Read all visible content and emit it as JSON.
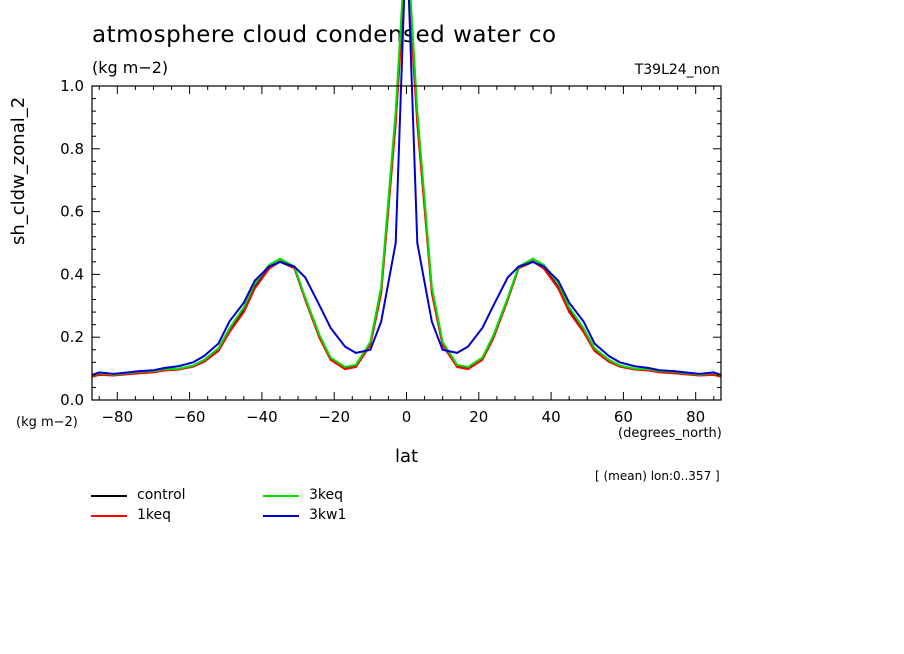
{
  "chart_data": {
    "type": "line",
    "title": "atmosphere cloud condensed water co",
    "units_label": "(kg m−2)",
    "run_label": "T39L24_non",
    "ylabel": "sh_cldw_zonal_2",
    "xlabel": "lat",
    "y_units": "(kg m−2)",
    "x_units": "(degrees_north)",
    "note": "[ (mean) lon:0..357 ]",
    "xlim": [
      -87,
      87
    ],
    "ylim": [
      0,
      1
    ],
    "x_ticks": [
      "-80",
      "-60",
      "-40",
      "-20",
      "0",
      "20",
      "40",
      "60",
      "80"
    ],
    "y_ticks": [
      "0.0",
      "0.2",
      "0.4",
      "0.6",
      "0.8",
      "1.0"
    ],
    "grid": false,
    "legend_position": "bottom-left",
    "x": [
      -87,
      -85,
      -81,
      -77,
      -74,
      -70,
      -67,
      -63,
      -59,
      -56,
      -52,
      -49,
      -45,
      -42,
      -38,
      -35,
      -31,
      -28,
      -24,
      -21,
      -17,
      -14,
      -10,
      -7,
      -3,
      0,
      3,
      7,
      10,
      14,
      17,
      21,
      24,
      28,
      31,
      35,
      38,
      42,
      45,
      49,
      52,
      56,
      59,
      63,
      67,
      70,
      74,
      77,
      81,
      85,
      87
    ],
    "series": [
      {
        "name": "control",
        "color": "#000000",
        "values": [
          0.075,
          0.082,
          0.079,
          0.085,
          0.087,
          0.089,
          0.095,
          0.098,
          0.108,
          0.125,
          0.16,
          0.22,
          0.285,
          0.36,
          0.42,
          0.44,
          0.42,
          0.32,
          0.2,
          0.13,
          0.1,
          0.11,
          0.18,
          0.35,
          0.9,
          1.45,
          0.9,
          0.35,
          0.18,
          0.11,
          0.1,
          0.13,
          0.2,
          0.32,
          0.42,
          0.44,
          0.42,
          0.36,
          0.285,
          0.22,
          0.16,
          0.125,
          0.108,
          0.098,
          0.095,
          0.089,
          0.087,
          0.085,
          0.079,
          0.082,
          0.075
        ]
      },
      {
        "name": "1keq",
        "color": "#ff0000",
        "values": [
          0.074,
          0.08,
          0.078,
          0.082,
          0.085,
          0.088,
          0.094,
          0.097,
          0.106,
          0.122,
          0.156,
          0.216,
          0.28,
          0.355,
          0.418,
          0.442,
          0.421,
          0.318,
          0.196,
          0.128,
          0.098,
          0.105,
          0.175,
          0.34,
          0.88,
          1.42,
          0.88,
          0.34,
          0.175,
          0.105,
          0.098,
          0.128,
          0.196,
          0.318,
          0.421,
          0.442,
          0.418,
          0.355,
          0.28,
          0.216,
          0.156,
          0.122,
          0.106,
          0.097,
          0.094,
          0.088,
          0.085,
          0.082,
          0.078,
          0.08,
          0.074
        ]
      },
      {
        "name": "3keq",
        "color": "#00e000",
        "values": [
          0.078,
          0.086,
          0.081,
          0.086,
          0.09,
          0.092,
          0.098,
          0.1,
          0.11,
          0.128,
          0.165,
          0.228,
          0.295,
          0.372,
          0.43,
          0.45,
          0.425,
          0.325,
          0.205,
          0.135,
          0.105,
          0.112,
          0.185,
          0.36,
          0.92,
          1.5,
          0.92,
          0.36,
          0.185,
          0.112,
          0.105,
          0.135,
          0.205,
          0.325,
          0.425,
          0.45,
          0.43,
          0.372,
          0.295,
          0.228,
          0.165,
          0.128,
          0.11,
          0.1,
          0.098,
          0.092,
          0.09,
          0.086,
          0.081,
          0.086,
          0.078
        ]
      },
      {
        "name": "3kw1",
        "color": "#0000cc",
        "values": [
          0.08,
          0.088,
          0.083,
          0.088,
          0.092,
          0.095,
          0.102,
          0.108,
          0.12,
          0.14,
          0.18,
          0.25,
          0.31,
          0.38,
          0.425,
          0.44,
          0.425,
          0.39,
          0.3,
          0.23,
          0.17,
          0.15,
          0.16,
          0.25,
          0.5,
          1.5,
          0.5,
          0.25,
          0.16,
          0.15,
          0.17,
          0.23,
          0.3,
          0.39,
          0.425,
          0.44,
          0.425,
          0.38,
          0.31,
          0.25,
          0.18,
          0.14,
          0.12,
          0.108,
          0.102,
          0.095,
          0.092,
          0.088,
          0.083,
          0.088,
          0.08
        ]
      }
    ]
  }
}
